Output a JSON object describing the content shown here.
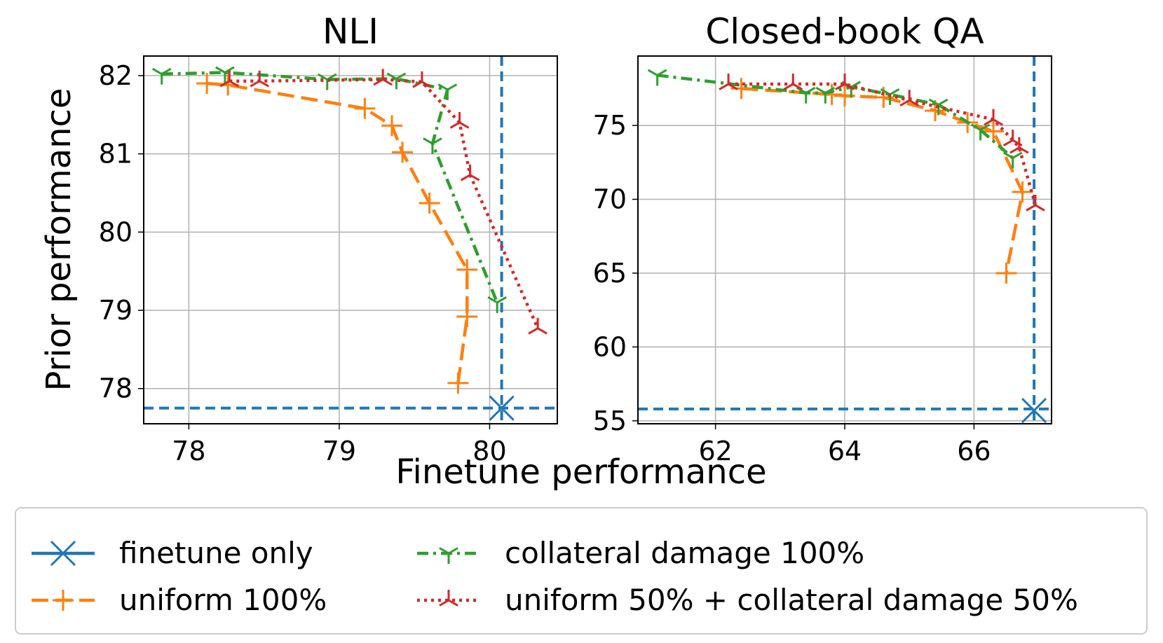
{
  "figure": {
    "shared_xlabel": "Finetune performance",
    "shared_ylabel": "Prior performance"
  },
  "legend": {
    "position": "bottom",
    "entries": [
      {
        "label": "finetune only",
        "color": "#1f77b4"
      },
      {
        "label": "uniform 100%",
        "color": "#ff7f0e"
      },
      {
        "label": "collateral damage 100%",
        "color": "#2ca02c"
      },
      {
        "label": "uniform 50% + collateral damage 50%",
        "color": "#d62728"
      }
    ]
  },
  "chart_data": [
    {
      "type": "line",
      "title": "NLI",
      "xlabel": "Finetune performance",
      "ylabel": "Prior performance",
      "xlim": [
        77.7,
        80.45
      ],
      "ylim": [
        77.55,
        82.25
      ],
      "xticks": [
        78,
        79,
        80
      ],
      "yticks": [
        78,
        79,
        80,
        81,
        82
      ],
      "grid": true,
      "reference_lines": {
        "x": 80.08,
        "y": 77.75,
        "color": "#1f77b4"
      },
      "series": [
        {
          "name": "finetune only",
          "color": "#1f77b4",
          "marker": "x",
          "points": [
            [
              80.08,
              77.75
            ]
          ]
        },
        {
          "name": "uniform 100%",
          "color": "#ff7f0e",
          "marker": "plus",
          "dash": "long",
          "points": [
            [
              78.12,
              81.9
            ],
            [
              78.26,
              81.88
            ],
            [
              79.17,
              81.58
            ],
            [
              79.35,
              81.36
            ],
            [
              79.42,
              81.02
            ],
            [
              79.6,
              80.37
            ],
            [
              79.85,
              79.52
            ],
            [
              79.85,
              78.92
            ],
            [
              79.79,
              78.07
            ]
          ]
        },
        {
          "name": "collateral damage 100%",
          "color": "#2ca02c",
          "marker": "tri_down",
          "dash": "dashdot",
          "points": [
            [
              77.82,
              82.02
            ],
            [
              78.24,
              82.04
            ],
            [
              78.92,
              81.95
            ],
            [
              79.38,
              81.96
            ],
            [
              79.72,
              81.82
            ],
            [
              79.62,
              81.13
            ],
            [
              80.05,
              79.1
            ]
          ]
        },
        {
          "name": "uniform 50% + collateral damage 50%",
          "color": "#d62728",
          "marker": "tri_up",
          "dash": "dotted",
          "points": [
            [
              78.27,
              81.93
            ],
            [
              78.47,
              81.93
            ],
            [
              79.29,
              81.95
            ],
            [
              79.55,
              81.92
            ],
            [
              79.8,
              81.4
            ],
            [
              79.87,
              80.73
            ],
            [
              80.32,
              78.77
            ]
          ]
        }
      ]
    },
    {
      "type": "line",
      "title": "Closed-book QA",
      "xlabel": "Finetune performance",
      "ylabel": "Prior performance",
      "xlim": [
        60.8,
        67.2
      ],
      "ylim": [
        54.8,
        79.7
      ],
      "xticks": [
        62,
        64,
        66
      ],
      "yticks": [
        55,
        60,
        65,
        70,
        75
      ],
      "grid": true,
      "reference_lines": {
        "x": 66.93,
        "y": 55.8,
        "color": "#1f77b4"
      },
      "series": [
        {
          "name": "finetune only",
          "color": "#1f77b4",
          "marker": "x",
          "points": [
            [
              66.93,
              55.7
            ]
          ]
        },
        {
          "name": "uniform 100%",
          "color": "#ff7f0e",
          "marker": "plus",
          "dash": "long",
          "points": [
            [
              62.4,
              77.5
            ],
            [
              63.8,
              77.1
            ],
            [
              64.0,
              77.0
            ],
            [
              64.6,
              76.9
            ],
            [
              65.4,
              76.0
            ],
            [
              65.9,
              75.2
            ],
            [
              66.3,
              74.6
            ],
            [
              66.75,
              70.5
            ],
            [
              66.5,
              65.0
            ]
          ]
        },
        {
          "name": "collateral damage 100%",
          "color": "#2ca02c",
          "marker": "tri_down",
          "dash": "dashdot",
          "points": [
            [
              61.1,
              78.4
            ],
            [
              63.4,
              77.2
            ],
            [
              63.7,
              77.2
            ],
            [
              64.1,
              77.6
            ],
            [
              64.7,
              77.1
            ],
            [
              65.45,
              76.4
            ],
            [
              66.1,
              74.7
            ],
            [
              66.6,
              72.8
            ]
          ]
        },
        {
          "name": "uniform 50% + collateral damage 50%",
          "color": "#d62728",
          "marker": "tri_up",
          "dash": "dotted",
          "points": [
            [
              62.2,
              77.8
            ],
            [
              63.2,
              77.8
            ],
            [
              64.0,
              77.8
            ],
            [
              65.0,
              76.7
            ],
            [
              66.3,
              75.4
            ],
            [
              66.6,
              74.0
            ],
            [
              66.7,
              73.5
            ],
            [
              66.95,
              69.6
            ]
          ]
        }
      ]
    }
  ]
}
